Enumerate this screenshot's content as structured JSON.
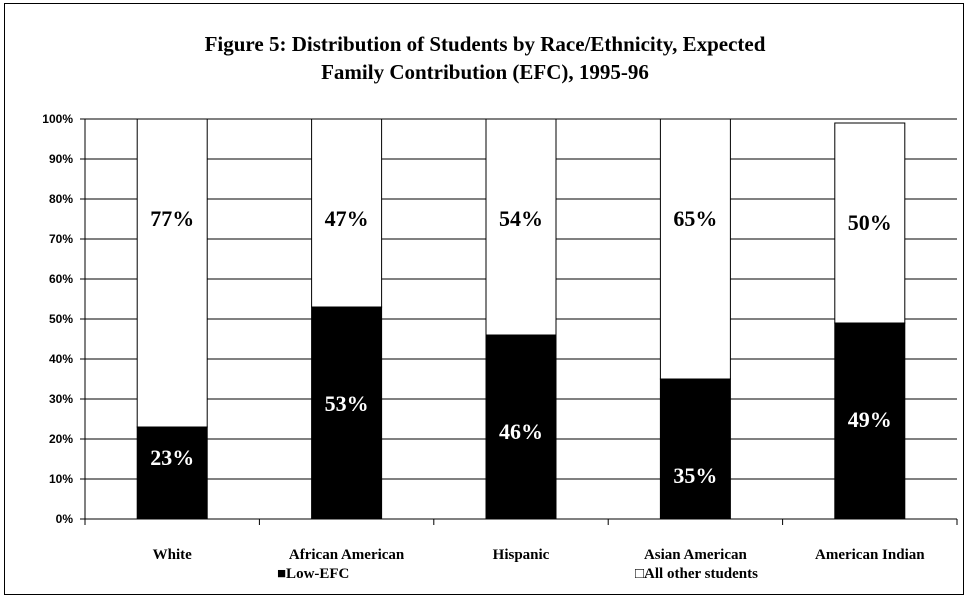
{
  "chart_data": {
    "type": "bar",
    "stacked": true,
    "title_lines": [
      "Figure 5: Distribution of Students by Race/Ethnicity, Expected",
      "Family Contribution (EFC), 1995-96"
    ],
    "categories": [
      "White",
      "African American",
      "Hispanic",
      "Asian American",
      "American Indian"
    ],
    "series": [
      {
        "name": "Low-EFC",
        "values": [
          23,
          53,
          46,
          35,
          49
        ],
        "labels": [
          "23%",
          "53%",
          "46%",
          "35%",
          "49%"
        ],
        "color": "#000000"
      },
      {
        "name": "All other students",
        "values": [
          77,
          47,
          54,
          65,
          50
        ],
        "labels": [
          "77%",
          "47%",
          "54%",
          "65%",
          "50%"
        ],
        "color": "#ffffff"
      }
    ],
    "yticks": [
      "0%",
      "10%",
      "20%",
      "30%",
      "40%",
      "50%",
      "60%",
      "70%",
      "80%",
      "90%",
      "100%"
    ],
    "ylim": [
      0,
      100
    ],
    "grid": true,
    "legend_position": "bottom",
    "legend_items": [
      "■Low-EFC",
      "□All other students"
    ]
  }
}
